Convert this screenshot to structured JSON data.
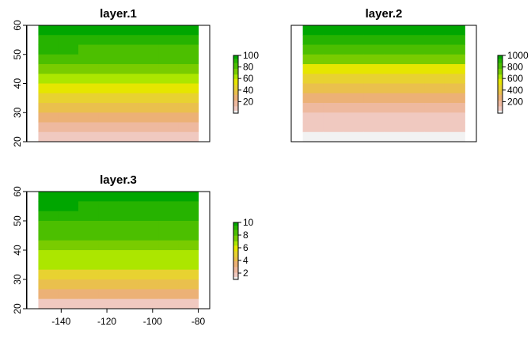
{
  "chart_data": [
    {
      "type": "heatmap",
      "title": "layer.1",
      "x_ticks": [
        -140,
        -120,
        -100,
        -80
      ],
      "y_ticks": [
        20,
        30,
        40,
        50,
        60
      ],
      "xlim": [
        -155,
        -75
      ],
      "ylim": [
        20,
        60
      ],
      "extent": {
        "xmin": -150,
        "xmax": -80,
        "ymin": 20,
        "ymax": 60
      },
      "ncol": 8,
      "nrow": 12,
      "row_values": [
        98,
        92,
        85,
        78,
        70,
        62,
        53,
        45,
        35,
        25,
        15,
        5
      ],
      "legend_ticks": [
        20,
        40,
        60,
        80,
        100
      ],
      "legend_range": [
        0,
        100
      ],
      "show_x_labels": false
    },
    {
      "type": "heatmap",
      "title": "layer.2",
      "x_ticks": [],
      "y_ticks": [],
      "xlim": [
        -155,
        -75
      ],
      "ylim": [
        20,
        60
      ],
      "extent": {
        "xmin": -150,
        "xmax": -80,
        "ymin": 20,
        "ymax": 60
      },
      "ncol": 8,
      "nrow": 12,
      "row_values": [
        980,
        900,
        820,
        700,
        580,
        450,
        330,
        230,
        160,
        100,
        50,
        10
      ],
      "legend_ticks": [
        200,
        400,
        600,
        800,
        1000
      ],
      "legend_range": [
        0,
        1000
      ],
      "show_x_labels": false
    },
    {
      "type": "heatmap",
      "title": "layer.3",
      "x_ticks": [
        -140,
        -120,
        -100,
        -80
      ],
      "y_ticks": [
        20,
        30,
        40,
        50,
        60
      ],
      "xlim": [
        -155,
        -75
      ],
      "ylim": [
        20,
        60
      ],
      "extent": {
        "xmin": -150,
        "xmax": -80,
        "ymin": 20,
        "ymax": 60
      },
      "ncol": 8,
      "nrow": 12,
      "row_values": [
        10,
        9.5,
        9,
        8.5,
        8,
        7.5,
        7,
        6.5,
        5.5,
        4.5,
        3.5,
        1.5
      ],
      "legend_ticks": [
        2,
        4,
        6,
        8,
        10
      ],
      "legend_range": [
        1,
        10
      ],
      "show_x_labels": true
    }
  ],
  "colors": {
    "palette": [
      "#00a600",
      "#26b300",
      "#4cbf00",
      "#79cc00",
      "#ace600",
      "#e6e600",
      "#e8d231",
      "#eac04d",
      "#ecb176",
      "#eeb99f",
      "#f0c9c0",
      "#f2f2f2"
    ],
    "frame": "#000000",
    "background": "#ffffff"
  }
}
